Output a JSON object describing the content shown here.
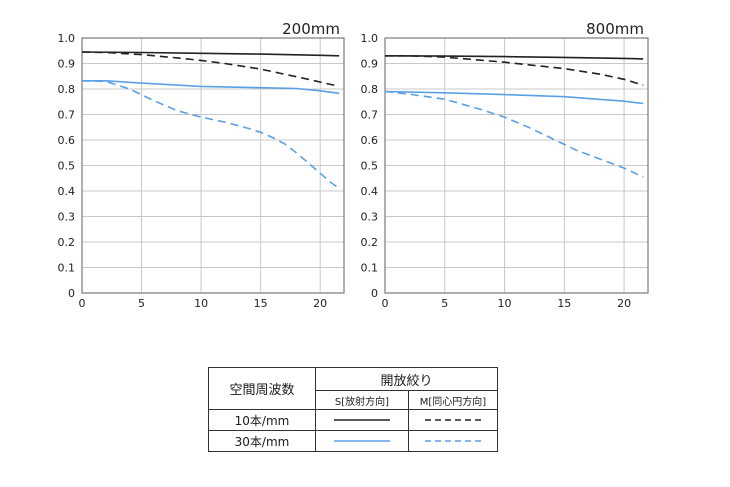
{
  "chart_data": [
    {
      "type": "line",
      "title": "200mm",
      "xlabel": "",
      "ylabel": "",
      "xlim": [
        0,
        22
      ],
      "ylim": [
        0,
        1.0
      ],
      "xticks": [
        "0",
        "5",
        "10",
        "15",
        "20"
      ],
      "yticks": [
        "0",
        "0.1",
        "0.2",
        "0.3",
        "0.4",
        "0.5",
        "0.6",
        "0.7",
        "0.8",
        "0.9",
        "1.0"
      ],
      "grid": true,
      "series": [
        {
          "name": "10本/mm S",
          "color": "#222222",
          "dash": "solid",
          "x": [
            0,
            5,
            10,
            15,
            20,
            21.6
          ],
          "y": [
            0.945,
            0.943,
            0.94,
            0.937,
            0.932,
            0.93
          ]
        },
        {
          "name": "10本/mm M",
          "color": "#222222",
          "dash": "dashed",
          "x": [
            0,
            2,
            5,
            8,
            10,
            12,
            15,
            17,
            19,
            21.6
          ],
          "y": [
            0.945,
            0.943,
            0.935,
            0.922,
            0.912,
            0.9,
            0.878,
            0.858,
            0.838,
            0.81
          ]
        },
        {
          "name": "30本/mm S",
          "color": "#5aa0e6",
          "dash": "solid",
          "x": [
            0,
            2,
            5,
            10,
            15,
            18,
            20,
            21.6
          ],
          "y": [
            0.832,
            0.832,
            0.823,
            0.81,
            0.805,
            0.802,
            0.793,
            0.783
          ]
        },
        {
          "name": "30本/mm M",
          "color": "#5aa0e6",
          "dash": "dashed",
          "x": [
            0,
            2,
            4,
            6,
            8,
            10,
            12,
            14,
            15,
            16,
            17,
            18,
            19,
            20,
            21,
            21.6
          ],
          "y": [
            0.832,
            0.83,
            0.8,
            0.755,
            0.715,
            0.69,
            0.67,
            0.645,
            0.63,
            0.61,
            0.585,
            0.55,
            0.51,
            0.47,
            0.43,
            0.41
          ]
        }
      ]
    },
    {
      "type": "line",
      "title": "800mm",
      "xlabel": "",
      "ylabel": "",
      "xlim": [
        0,
        22
      ],
      "ylim": [
        0,
        1.0
      ],
      "xticks": [
        "0",
        "5",
        "10",
        "15",
        "20"
      ],
      "yticks": [
        "0",
        "0.1",
        "0.2",
        "0.3",
        "0.4",
        "0.5",
        "0.6",
        "0.7",
        "0.8",
        "0.9",
        "1.0"
      ],
      "grid": true,
      "series": [
        {
          "name": "10本/mm S",
          "color": "#222222",
          "dash": "solid",
          "x": [
            0,
            5,
            10,
            15,
            20,
            21.6
          ],
          "y": [
            0.93,
            0.929,
            0.927,
            0.924,
            0.92,
            0.918
          ]
        },
        {
          "name": "10本/mm M",
          "color": "#222222",
          "dash": "dashed",
          "x": [
            0,
            2,
            5,
            8,
            10,
            12,
            15,
            18,
            20,
            21.6
          ],
          "y": [
            0.93,
            0.93,
            0.925,
            0.913,
            0.905,
            0.895,
            0.88,
            0.858,
            0.838,
            0.815
          ]
        },
        {
          "name": "30本/mm S",
          "color": "#5aa0e6",
          "dash": "solid",
          "x": [
            0,
            5,
            10,
            15,
            20,
            21.6
          ],
          "y": [
            0.79,
            0.785,
            0.778,
            0.77,
            0.752,
            0.743
          ]
        },
        {
          "name": "30本/mm M",
          "color": "#5aa0e6",
          "dash": "dashed",
          "x": [
            0,
            2,
            5,
            8,
            10,
            12,
            14,
            16,
            18,
            20,
            21.6
          ],
          "y": [
            0.79,
            0.78,
            0.76,
            0.72,
            0.69,
            0.65,
            0.605,
            0.56,
            0.525,
            0.49,
            0.455
          ]
        }
      ]
    }
  ],
  "legend": {
    "header_freq": "空間周波数",
    "header_aperture": "開放絞り",
    "col_s": "S[放射方向]",
    "col_m": "M[同心円方向]",
    "row1": "10本/mm",
    "row2": "30本/mm",
    "row1_color": "#222222",
    "row2_color": "#5aa0e6"
  }
}
